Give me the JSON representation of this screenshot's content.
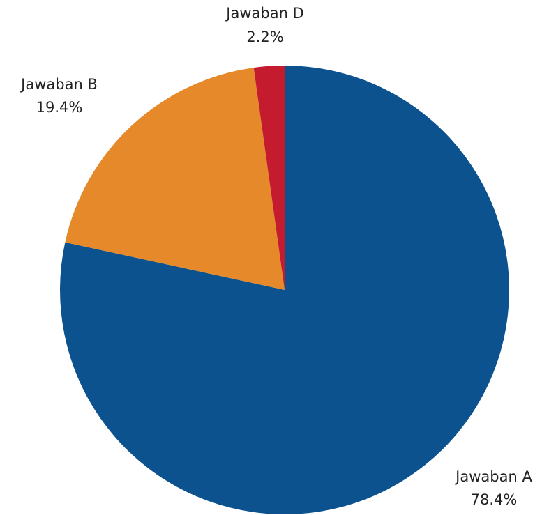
{
  "chart_data": {
    "type": "pie",
    "title": "",
    "slices": [
      {
        "label": "Jawaban A",
        "value": 78.4,
        "value_label": "78.4%",
        "color": "#0b528e"
      },
      {
        "label": "Jawaban B",
        "value": 19.4,
        "value_label": "19.4%",
        "color": "#e5892a"
      },
      {
        "label": "Jawaban D",
        "value": 2.2,
        "value_label": "2.2%",
        "color": "#c41b2f"
      }
    ],
    "start_angle_deg": 0,
    "direction": "clockwise",
    "legend": "none"
  }
}
